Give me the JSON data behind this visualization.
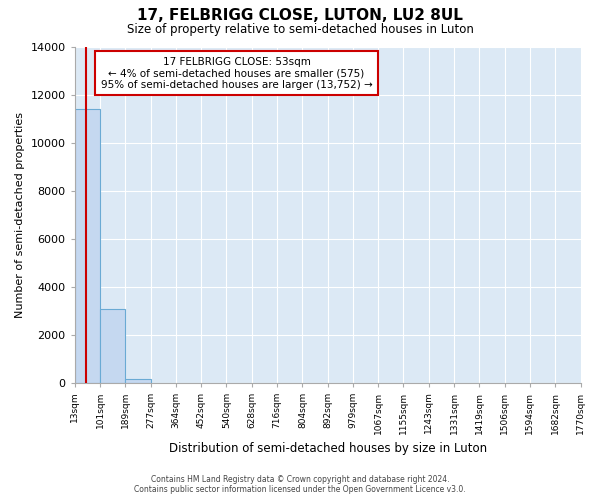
{
  "title": "17, FELBRIGG CLOSE, LUTON, LU2 8UL",
  "subtitle": "Size of property relative to semi-detached houses in Luton",
  "xlabel": "Distribution of semi-detached houses by size in Luton",
  "ylabel": "Number of semi-detached properties",
  "bin_edges": [
    13,
    101,
    189,
    277,
    364,
    452,
    540,
    628,
    716,
    804,
    892,
    979,
    1067,
    1155,
    1243,
    1331,
    1419,
    1506,
    1594,
    1682,
    1770
  ],
  "bar_heights": [
    11400,
    3050,
    150,
    0,
    0,
    0,
    0,
    0,
    0,
    0,
    0,
    0,
    0,
    0,
    0,
    0,
    0,
    0,
    0,
    0
  ],
  "bar_color": "#c5d8f0",
  "bar_edgecolor": "#6aaad4",
  "property_size": 53,
  "annotation_line1": "17 FELBRIGG CLOSE: 53sqm",
  "annotation_line2": "← 4% of semi-detached houses are smaller (575)",
  "annotation_line3": "95% of semi-detached houses are larger (13,752) →",
  "vline_color": "#cc0000",
  "annotation_box_edgecolor": "#cc0000",
  "ylim": [
    0,
    14000
  ],
  "yticks": [
    0,
    2000,
    4000,
    6000,
    8000,
    10000,
    12000,
    14000
  ],
  "tick_labels": [
    "13sqm",
    "101sqm",
    "189sqm",
    "277sqm",
    "364sqm",
    "452sqm",
    "540sqm",
    "628sqm",
    "716sqm",
    "804sqm",
    "892sqm",
    "979sqm",
    "1067sqm",
    "1155sqm",
    "1243sqm",
    "1331sqm",
    "1419sqm",
    "1506sqm",
    "1594sqm",
    "1682sqm",
    "1770sqm"
  ],
  "footer_line1": "Contains HM Land Registry data © Crown copyright and database right 2024.",
  "footer_line2": "Contains public sector information licensed under the Open Government Licence v3.0.",
  "plot_bg_color": "#dce9f5",
  "fig_bg_color": "#ffffff",
  "grid_color": "#ffffff"
}
